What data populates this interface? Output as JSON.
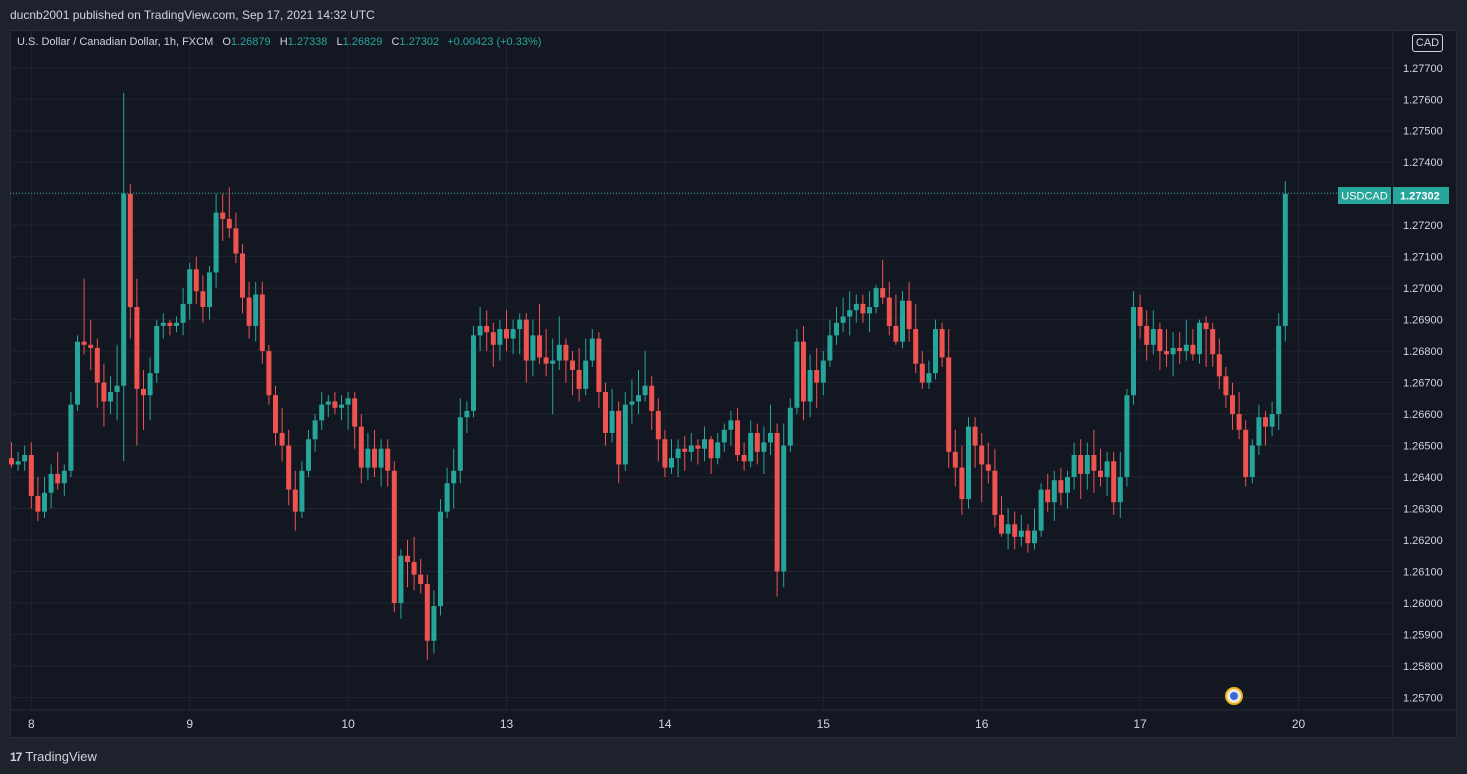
{
  "header": {
    "published_text": "ducnb2001 published on TradingView.com, Sep 17, 2021 14:32 UTC"
  },
  "legend": {
    "symbol_desc": "U.S. Dollar / Canadian Dollar, 1h, FXCM",
    "o_label": "O",
    "o_value": "1.26879",
    "h_label": "H",
    "h_value": "1.27338",
    "l_label": "L",
    "l_value": "1.26829",
    "c_label": "C",
    "c_value": "1.27302",
    "change": "+0.00423 (+0.33%)"
  },
  "currency_tag": "CAD",
  "price_tag": {
    "symbol": "USDCAD",
    "price": "1.27302"
  },
  "footer": {
    "brand": "TradingView",
    "brand_mark": "17"
  },
  "colors": {
    "up": "#26a69a",
    "down": "#ef5350",
    "background": "#131722",
    "grid": "#1f2430",
    "text": "#d1d4dc"
  },
  "chart_data": {
    "type": "candlestick",
    "symbol": "USDCAD",
    "interval": "1h",
    "grid": true,
    "y_axis": {
      "side": "right",
      "ylim": [
        1.2566,
        1.2782
      ],
      "ticks": [
        "1.25700",
        "1.25800",
        "1.25900",
        "1.26000",
        "1.26100",
        "1.26200",
        "1.26300",
        "1.26400",
        "1.26500",
        "1.26600",
        "1.26700",
        "1.26800",
        "1.26900",
        "1.27000",
        "1.27100",
        "1.27200",
        "1.27300",
        "1.27400",
        "1.27500",
        "1.27600",
        "1.27700"
      ]
    },
    "x_axis": {
      "ticks": [
        {
          "label": "8",
          "index": 3
        },
        {
          "label": "9",
          "index": 27
        },
        {
          "label": "10",
          "index": 51
        },
        {
          "label": "13",
          "index": 75
        },
        {
          "label": "14",
          "index": 99
        },
        {
          "label": "15",
          "index": 123
        },
        {
          "label": "16",
          "index": 147
        },
        {
          "label": "17",
          "index": 171
        },
        {
          "label": "20",
          "index": 195
        }
      ]
    },
    "last_price": 1.27302,
    "candles": [
      [
        1.2646,
        1.2651,
        1.2643,
        1.2644
      ],
      [
        1.2644,
        1.2648,
        1.2642,
        1.2645
      ],
      [
        1.2645,
        1.265,
        1.2642,
        1.2647
      ],
      [
        1.2647,
        1.2651,
        1.263,
        1.2634
      ],
      [
        1.2634,
        1.264,
        1.2626,
        1.2629
      ],
      [
        1.2629,
        1.264,
        1.2627,
        1.2635
      ],
      [
        1.2635,
        1.2644,
        1.263,
        1.2641
      ],
      [
        1.2641,
        1.2648,
        1.2636,
        1.2638
      ],
      [
        1.2638,
        1.2644,
        1.2634,
        1.2642
      ],
      [
        1.2642,
        1.2667,
        1.264,
        1.2663
      ],
      [
        1.2663,
        1.2685,
        1.2661,
        1.2683
      ],
      [
        1.2683,
        1.2703,
        1.2679,
        1.2682
      ],
      [
        1.2682,
        1.269,
        1.2674,
        1.2681
      ],
      [
        1.2681,
        1.2684,
        1.2662,
        1.267
      ],
      [
        1.267,
        1.2676,
        1.2656,
        1.2664
      ],
      [
        1.2664,
        1.2672,
        1.266,
        1.2667
      ],
      [
        1.2667,
        1.2682,
        1.2658,
        1.2669
      ],
      [
        1.2669,
        1.2762,
        1.2645,
        1.273
      ],
      [
        1.273,
        1.2733,
        1.2684,
        1.2694
      ],
      [
        1.2694,
        1.2703,
        1.265,
        1.2668
      ],
      [
        1.2668,
        1.2674,
        1.2655,
        1.2666
      ],
      [
        1.2666,
        1.2678,
        1.2658,
        1.2673
      ],
      [
        1.2673,
        1.269,
        1.267,
        1.2688
      ],
      [
        1.2688,
        1.2692,
        1.2684,
        1.2689
      ],
      [
        1.2689,
        1.269,
        1.2685,
        1.2688
      ],
      [
        1.2688,
        1.2691,
        1.2686,
        1.2689
      ],
      [
        1.2689,
        1.27,
        1.2685,
        1.2695
      ],
      [
        1.2695,
        1.2708,
        1.269,
        1.2706
      ],
      [
        1.2706,
        1.271,
        1.2695,
        1.2699
      ],
      [
        1.2699,
        1.2704,
        1.2689,
        1.2694
      ],
      [
        1.2694,
        1.2707,
        1.269,
        1.2705
      ],
      [
        1.2705,
        1.273,
        1.27,
        1.2724
      ],
      [
        1.2724,
        1.273,
        1.2715,
        1.2722
      ],
      [
        1.2722,
        1.2732,
        1.2716,
        1.2719
      ],
      [
        1.2719,
        1.2724,
        1.2708,
        1.2711
      ],
      [
        1.2711,
        1.2714,
        1.2692,
        1.2697
      ],
      [
        1.2697,
        1.2702,
        1.2684,
        1.2688
      ],
      [
        1.2688,
        1.2702,
        1.2683,
        1.2698
      ],
      [
        1.2698,
        1.2702,
        1.2676,
        1.268
      ],
      [
        1.268,
        1.2682,
        1.2663,
        1.2666
      ],
      [
        1.2666,
        1.2669,
        1.265,
        1.2654
      ],
      [
        1.2654,
        1.2662,
        1.2645,
        1.265
      ],
      [
        1.265,
        1.2655,
        1.2631,
        1.2636
      ],
      [
        1.2636,
        1.2642,
        1.2623,
        1.2629
      ],
      [
        1.2629,
        1.2645,
        1.2627,
        1.2642
      ],
      [
        1.2642,
        1.2655,
        1.264,
        1.2652
      ],
      [
        1.2652,
        1.266,
        1.2648,
        1.2658
      ],
      [
        1.2658,
        1.2667,
        1.2655,
        1.2663
      ],
      [
        1.2663,
        1.2666,
        1.2659,
        1.2664
      ],
      [
        1.2664,
        1.2667,
        1.266,
        1.2662
      ],
      [
        1.2662,
        1.2666,
        1.2658,
        1.2663
      ],
      [
        1.2663,
        1.2667,
        1.2655,
        1.2665
      ],
      [
        1.2665,
        1.2667,
        1.2649,
        1.2656
      ],
      [
        1.2656,
        1.266,
        1.2638,
        1.2643
      ],
      [
        1.2643,
        1.2654,
        1.2639,
        1.2649
      ],
      [
        1.2649,
        1.2655,
        1.264,
        1.2643
      ],
      [
        1.2643,
        1.2652,
        1.2637,
        1.2649
      ],
      [
        1.2649,
        1.2652,
        1.2637,
        1.2642
      ],
      [
        1.2642,
        1.2645,
        1.2597,
        1.26
      ],
      [
        1.26,
        1.2617,
        1.2595,
        1.2615
      ],
      [
        1.2615,
        1.262,
        1.2605,
        1.2613
      ],
      [
        1.2613,
        1.2621,
        1.2604,
        1.2609
      ],
      [
        1.2609,
        1.2614,
        1.2603,
        1.2606
      ],
      [
        1.2606,
        1.2609,
        1.2582,
        1.2588
      ],
      [
        1.2588,
        1.2604,
        1.2584,
        1.2599
      ],
      [
        1.2599,
        1.2633,
        1.2596,
        1.2629
      ],
      [
        1.2629,
        1.2643,
        1.2627,
        1.2638
      ],
      [
        1.2638,
        1.2649,
        1.263,
        1.2642
      ],
      [
        1.2642,
        1.2665,
        1.2638,
        1.2659
      ],
      [
        1.2659,
        1.2664,
        1.2654,
        1.2661
      ],
      [
        1.2661,
        1.2688,
        1.2659,
        1.2685
      ],
      [
        1.2685,
        1.2694,
        1.268,
        1.2688
      ],
      [
        1.2688,
        1.2693,
        1.268,
        1.2686
      ],
      [
        1.2686,
        1.2689,
        1.2675,
        1.2682
      ],
      [
        1.2682,
        1.269,
        1.2677,
        1.2687
      ],
      [
        1.2687,
        1.2693,
        1.268,
        1.2684
      ],
      [
        1.2684,
        1.269,
        1.2679,
        1.2687
      ],
      [
        1.2687,
        1.2692,
        1.2679,
        1.269
      ],
      [
        1.269,
        1.2692,
        1.267,
        1.2677
      ],
      [
        1.2677,
        1.269,
        1.2672,
        1.2685
      ],
      [
        1.2685,
        1.2695,
        1.2676,
        1.2678
      ],
      [
        1.2678,
        1.2687,
        1.2672,
        1.2676
      ],
      [
        1.2676,
        1.2684,
        1.266,
        1.2677
      ],
      [
        1.2677,
        1.2691,
        1.2674,
        1.2682
      ],
      [
        1.2682,
        1.2684,
        1.267,
        1.2677
      ],
      [
        1.2677,
        1.268,
        1.2666,
        1.2674
      ],
      [
        1.2674,
        1.2681,
        1.2664,
        1.2668
      ],
      [
        1.2668,
        1.2684,
        1.2666,
        1.2677
      ],
      [
        1.2677,
        1.2687,
        1.2675,
        1.2684
      ],
      [
        1.2684,
        1.2686,
        1.2662,
        1.2667
      ],
      [
        1.2667,
        1.267,
        1.265,
        1.2654
      ],
      [
        1.2654,
        1.2668,
        1.2651,
        1.2661
      ],
      [
        1.2661,
        1.2664,
        1.2638,
        1.2644
      ],
      [
        1.2644,
        1.2667,
        1.2642,
        1.2663
      ],
      [
        1.2663,
        1.2671,
        1.2657,
        1.2664
      ],
      [
        1.2664,
        1.2674,
        1.266,
        1.2666
      ],
      [
        1.2666,
        1.268,
        1.2664,
        1.2669
      ],
      [
        1.2669,
        1.2672,
        1.2655,
        1.2661
      ],
      [
        1.2661,
        1.2665,
        1.2645,
        1.2652
      ],
      [
        1.2652,
        1.2655,
        1.264,
        1.2643
      ],
      [
        1.2643,
        1.2652,
        1.2641,
        1.2646
      ],
      [
        1.2646,
        1.2652,
        1.264,
        1.2649
      ],
      [
        1.2649,
        1.2653,
        1.2642,
        1.2648
      ],
      [
        1.2648,
        1.2654,
        1.2645,
        1.265
      ],
      [
        1.265,
        1.2652,
        1.2644,
        1.2649
      ],
      [
        1.2649,
        1.2656,
        1.2645,
        1.2652
      ],
      [
        1.2652,
        1.2653,
        1.2641,
        1.2646
      ],
      [
        1.2646,
        1.2654,
        1.2644,
        1.2651
      ],
      [
        1.2651,
        1.2657,
        1.2648,
        1.2655
      ],
      [
        1.2655,
        1.2661,
        1.265,
        1.2658
      ],
      [
        1.2658,
        1.2662,
        1.2645,
        1.2647
      ],
      [
        1.2647,
        1.2651,
        1.2642,
        1.2645
      ],
      [
        1.2645,
        1.2658,
        1.2643,
        1.2654
      ],
      [
        1.2654,
        1.2657,
        1.2644,
        1.2648
      ],
      [
        1.2648,
        1.2656,
        1.2641,
        1.2651
      ],
      [
        1.2651,
        1.2663,
        1.2647,
        1.2654
      ],
      [
        1.2654,
        1.2657,
        1.2602,
        1.261
      ],
      [
        1.261,
        1.2657,
        1.2605,
        1.265
      ],
      [
        1.265,
        1.2665,
        1.2648,
        1.2662
      ],
      [
        1.2662,
        1.2687,
        1.266,
        1.2683
      ],
      [
        1.2683,
        1.2688,
        1.2658,
        1.2664
      ],
      [
        1.2664,
        1.2679,
        1.2659,
        1.2674
      ],
      [
        1.2674,
        1.2681,
        1.2662,
        1.267
      ],
      [
        1.267,
        1.268,
        1.2666,
        1.2677
      ],
      [
        1.2677,
        1.269,
        1.2675,
        1.2685
      ],
      [
        1.2685,
        1.2694,
        1.2682,
        1.2689
      ],
      [
        1.2689,
        1.2697,
        1.2686,
        1.2691
      ],
      [
        1.2691,
        1.2699,
        1.2685,
        1.2693
      ],
      [
        1.2693,
        1.2698,
        1.2689,
        1.2695
      ],
      [
        1.2695,
        1.2698,
        1.2689,
        1.2692
      ],
      [
        1.2692,
        1.2699,
        1.2686,
        1.2694
      ],
      [
        1.2694,
        1.2701,
        1.2692,
        1.27
      ],
      [
        1.27,
        1.2709,
        1.2695,
        1.2697
      ],
      [
        1.2697,
        1.2702,
        1.2685,
        1.2688
      ],
      [
        1.2688,
        1.2698,
        1.2682,
        1.2683
      ],
      [
        1.2683,
        1.2699,
        1.2681,
        1.2696
      ],
      [
        1.2696,
        1.2702,
        1.2683,
        1.2687
      ],
      [
        1.2687,
        1.2695,
        1.2673,
        1.2676
      ],
      [
        1.2676,
        1.268,
        1.2668,
        1.267
      ],
      [
        1.267,
        1.2677,
        1.2668,
        1.2673
      ],
      [
        1.2673,
        1.269,
        1.2671,
        1.2687
      ],
      [
        1.2687,
        1.2689,
        1.2675,
        1.2678
      ],
      [
        1.2678,
        1.2687,
        1.2643,
        1.2648
      ],
      [
        1.2648,
        1.2655,
        1.2637,
        1.2643
      ],
      [
        1.2643,
        1.265,
        1.2628,
        1.2633
      ],
      [
        1.2633,
        1.2659,
        1.263,
        1.2656
      ],
      [
        1.2656,
        1.2659,
        1.2643,
        1.265
      ],
      [
        1.265,
        1.2654,
        1.2632,
        1.2644
      ],
      [
        1.2644,
        1.2651,
        1.2638,
        1.2642
      ],
      [
        1.2642,
        1.2649,
        1.2624,
        1.2628
      ],
      [
        1.2628,
        1.2634,
        1.2621,
        1.2622
      ],
      [
        1.2622,
        1.263,
        1.2617,
        1.2625
      ],
      [
        1.2625,
        1.2629,
        1.2617,
        1.2621
      ],
      [
        1.2621,
        1.2628,
        1.2618,
        1.2623
      ],
      [
        1.2623,
        1.2625,
        1.2616,
        1.2619
      ],
      [
        1.2619,
        1.263,
        1.2617,
        1.2623
      ],
      [
        1.2623,
        1.2638,
        1.2621,
        1.2636
      ],
      [
        1.2636,
        1.2641,
        1.2629,
        1.2632
      ],
      [
        1.2632,
        1.2642,
        1.2626,
        1.2639
      ],
      [
        1.2639,
        1.2643,
        1.2631,
        1.2635
      ],
      [
        1.2635,
        1.2642,
        1.263,
        1.264
      ],
      [
        1.264,
        1.2651,
        1.2636,
        1.2647
      ],
      [
        1.2647,
        1.2652,
        1.2633,
        1.2641
      ],
      [
        1.2641,
        1.2651,
        1.2636,
        1.2647
      ],
      [
        1.2647,
        1.2655,
        1.2635,
        1.2642
      ],
      [
        1.2642,
        1.2649,
        1.2637,
        1.264
      ],
      [
        1.264,
        1.2648,
        1.2634,
        1.2645
      ],
      [
        1.2645,
        1.2648,
        1.2628,
        1.2632
      ],
      [
        1.2632,
        1.2648,
        1.2627,
        1.264
      ],
      [
        1.264,
        1.2668,
        1.2637,
        1.2666
      ],
      [
        1.2666,
        1.2699,
        1.2663,
        1.2694
      ],
      [
        1.2694,
        1.2698,
        1.2684,
        1.2688
      ],
      [
        1.2688,
        1.2693,
        1.2677,
        1.2682
      ],
      [
        1.2682,
        1.2693,
        1.2679,
        1.2687
      ],
      [
        1.2687,
        1.2689,
        1.2674,
        1.268
      ],
      [
        1.268,
        1.2687,
        1.2675,
        1.2679
      ],
      [
        1.2679,
        1.2686,
        1.2672,
        1.2681
      ],
      [
        1.2681,
        1.2686,
        1.2676,
        1.268
      ],
      [
        1.268,
        1.269,
        1.2677,
        1.2682
      ],
      [
        1.2682,
        1.2687,
        1.2677,
        1.2679
      ],
      [
        1.2679,
        1.269,
        1.2676,
        1.2689
      ],
      [
        1.2689,
        1.2691,
        1.2675,
        1.2687
      ],
      [
        1.2687,
        1.2689,
        1.2675,
        1.2679
      ],
      [
        1.2679,
        1.2684,
        1.2668,
        1.2672
      ],
      [
        1.2672,
        1.2675,
        1.2662,
        1.2666
      ],
      [
        1.2666,
        1.267,
        1.2655,
        1.266
      ],
      [
        1.266,
        1.2667,
        1.2652,
        1.2655
      ],
      [
        1.2655,
        1.2658,
        1.2637,
        1.264
      ],
      [
        1.264,
        1.2652,
        1.2638,
        1.265
      ],
      [
        1.265,
        1.2663,
        1.2647,
        1.2659
      ],
      [
        1.2659,
        1.2661,
        1.265,
        1.2656
      ],
      [
        1.2656,
        1.2664,
        1.2653,
        1.266
      ],
      [
        1.266,
        1.2692,
        1.2655,
        1.2688
      ],
      [
        1.2688,
        1.2734,
        1.2683,
        1.273
      ]
    ]
  }
}
